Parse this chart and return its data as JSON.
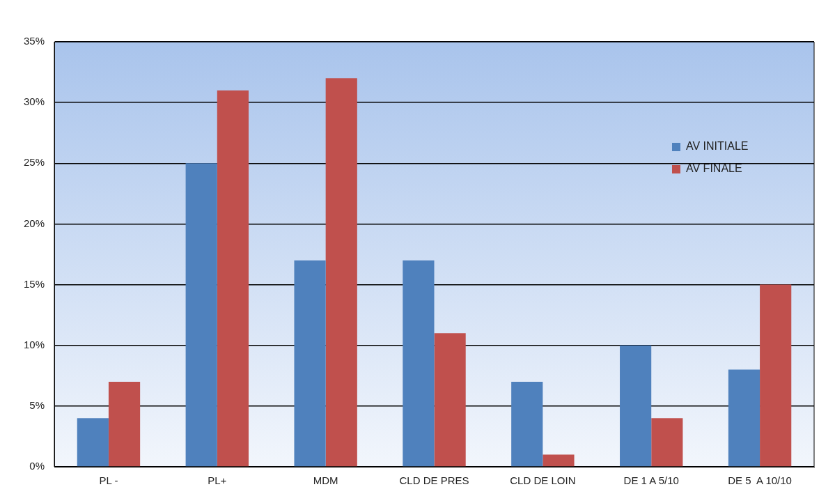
{
  "chart_data": {
    "type": "bar",
    "categories": [
      "PL -",
      "PL+",
      "MDM",
      "CLD DE PRES",
      "CLD DE LOIN",
      "DE 1 A 5/10",
      "DE 5  A 10/10"
    ],
    "series": [
      {
        "name": "AV INITIALE",
        "color": "#4f81bd",
        "values": [
          4,
          25,
          17,
          17,
          7,
          10,
          8
        ]
      },
      {
        "name": "AV FINALE",
        "color": "#c0504d",
        "values": [
          7,
          31,
          32,
          11,
          1,
          4,
          15
        ]
      }
    ],
    "ylim": [
      0,
      35
    ],
    "yticks": [
      {
        "value": 0,
        "label": "0%"
      },
      {
        "value": 5,
        "label": "5%"
      },
      {
        "value": 10,
        "label": "10%"
      },
      {
        "value": 15,
        "label": "15%"
      },
      {
        "value": 20,
        "label": "20%"
      },
      {
        "value": 25,
        "label": "25%"
      },
      {
        "value": 30,
        "label": "30%"
      },
      {
        "value": 35,
        "label": "35%"
      }
    ],
    "grid": "y",
    "legend": "right"
  }
}
